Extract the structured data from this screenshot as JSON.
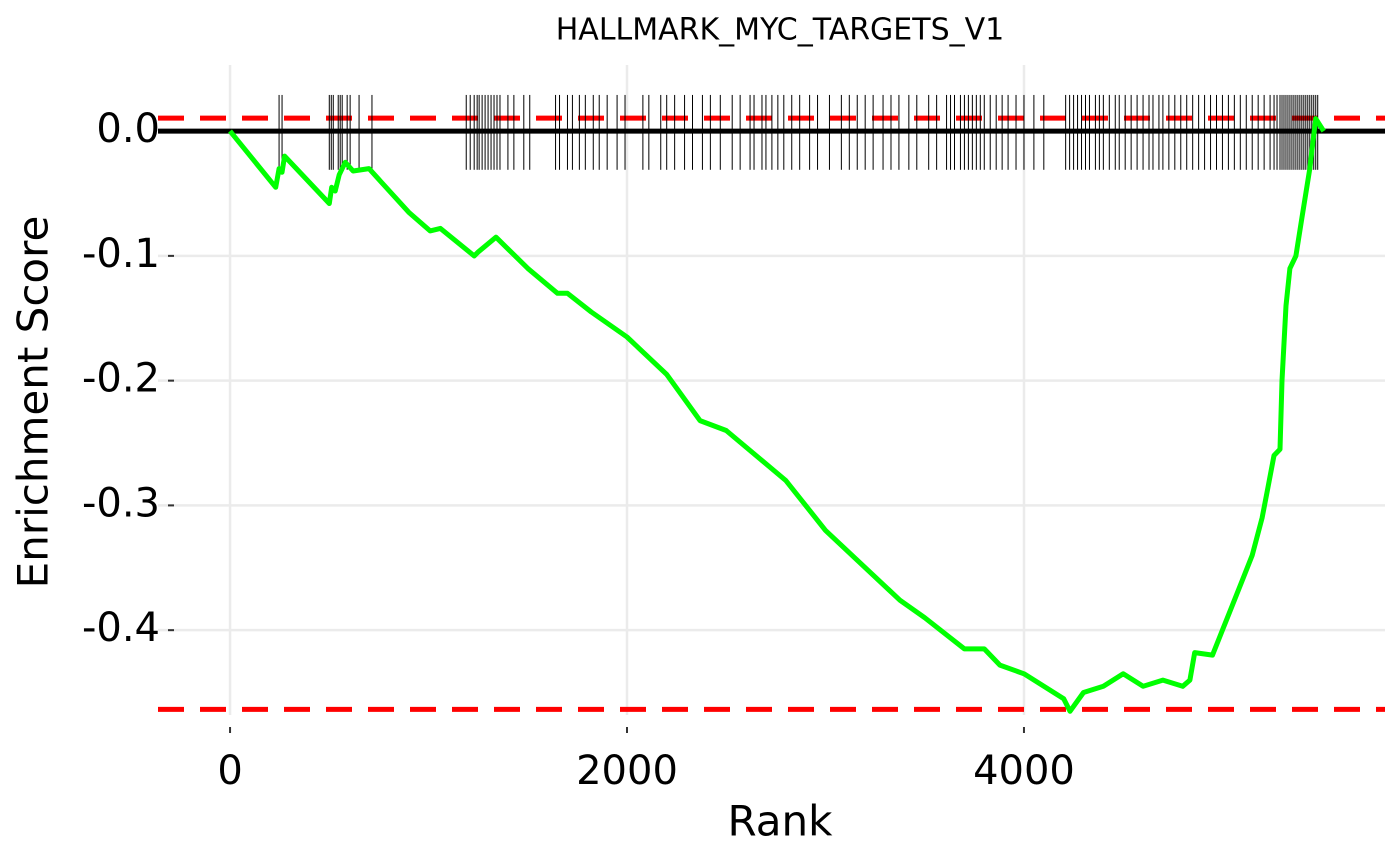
{
  "chart_data": {
    "type": "line",
    "title": "HALLMARK_MYC_TARGETS_V1",
    "x_label": "Rank",
    "y_label": "Enrichment Score",
    "color": "#00ff00",
    "x": [
      0,
      230,
      247,
      262,
      275,
      500,
      512,
      530,
      550,
      580,
      620,
      700,
      900,
      1008,
      1060,
      1230,
      1250,
      1340,
      1500,
      1650,
      1700,
      1820,
      2000,
      2200,
      2368,
      2500,
      2800,
      3000,
      3375,
      3500,
      3700,
      3800,
      3879,
      4000,
      4200,
      4232,
      4300,
      4400,
      4500,
      4600,
      4700,
      4800,
      4836,
      4860,
      4950,
      5000,
      5050,
      5100,
      5150,
      5200,
      5230,
      5260,
      5290,
      5300,
      5320,
      5340,
      5370,
      5400,
      5440,
      5470,
      5510
    ],
    "values": [
      0,
      -0.045,
      -0.03,
      -0.033,
      -0.02,
      -0.058,
      -0.045,
      -0.048,
      -0.035,
      -0.025,
      -0.032,
      -0.03,
      -0.065,
      -0.08,
      -0.078,
      -0.1,
      -0.097,
      -0.085,
      -0.11,
      -0.13,
      -0.13,
      -0.145,
      -0.165,
      -0.195,
      -0.232,
      -0.24,
      -0.28,
      -0.32,
      -0.376,
      -0.39,
      -0.415,
      -0.415,
      -0.428,
      -0.435,
      -0.455,
      -0.465,
      -0.45,
      -0.445,
      -0.435,
      -0.445,
      -0.44,
      -0.445,
      -0.44,
      -0.418,
      -0.42,
      -0.4,
      -0.38,
      -0.36,
      -0.34,
      -0.31,
      -0.285,
      -0.26,
      -0.255,
      -0.2,
      -0.14,
      -0.11,
      -0.1,
      -0.07,
      -0.03,
      0.01,
      0.0
    ],
    "gene_ranks": [
      247,
      262,
      500,
      510,
      520,
      545,
      555,
      565,
      590,
      605,
      650,
      715,
      1190,
      1210,
      1230,
      1245,
      1255,
      1270,
      1285,
      1300,
      1315,
      1330,
      1345,
      1360,
      1400,
      1430,
      1480,
      1510,
      1640,
      1660,
      1700,
      1725,
      1760,
      1790,
      1830,
      1860,
      1900,
      1950,
      1990,
      2080,
      2110,
      2170,
      2200,
      2240,
      2290,
      2330,
      2380,
      2420,
      2470,
      2530,
      2570,
      2620,
      2640,
      2680,
      2700,
      2730,
      2760,
      2790,
      2830,
      2870,
      2920,
      2960,
      3020,
      3080,
      3120,
      3160,
      3200,
      3240,
      3290,
      3330,
      3370,
      3420,
      3460,
      3520,
      3560,
      3610,
      3630,
      3650,
      3680,
      3700,
      3720,
      3740,
      3760,
      3780,
      3800,
      3830,
      3860,
      3890,
      3920,
      3960,
      4000,
      4050,
      4100,
      4210,
      4230,
      4250,
      4270,
      4290,
      4310,
      4330,
      4360,
      4380,
      4400,
      4430,
      4460,
      4480,
      4510,
      4540,
      4570,
      4600,
      4630,
      4650,
      4680,
      4700,
      4730,
      4760,
      4790,
      4820,
      4850,
      4880,
      4910,
      4940,
      4970,
      5000,
      5030,
      5060,
      5090,
      5120,
      5150,
      5180,
      5210,
      5240,
      5260,
      5275,
      5290,
      5300,
      5310,
      5320,
      5330,
      5340,
      5350,
      5360,
      5370,
      5380,
      5390,
      5400,
      5410,
      5420,
      5430,
      5440,
      5450,
      5460,
      5470,
      5480
    ],
    "reference_lines": [
      {
        "value": 0.0104,
        "color": "#ff0000",
        "dashed": true
      },
      {
        "value": -0.4635,
        "color": "#ff0000",
        "dashed": true
      },
      {
        "value": 0,
        "color": "#000000",
        "dashed": false
      }
    ],
    "xlim": [
      -363,
      5819
    ],
    "ylim": [
      -0.468,
      0.053
    ],
    "xticks": [
      0,
      2000,
      4000
    ],
    "yticks": [
      {
        "value": 0,
        "label": "0.0"
      },
      -0.1,
      -0.2,
      -0.3,
      -0.4
    ],
    "grid": true
  }
}
